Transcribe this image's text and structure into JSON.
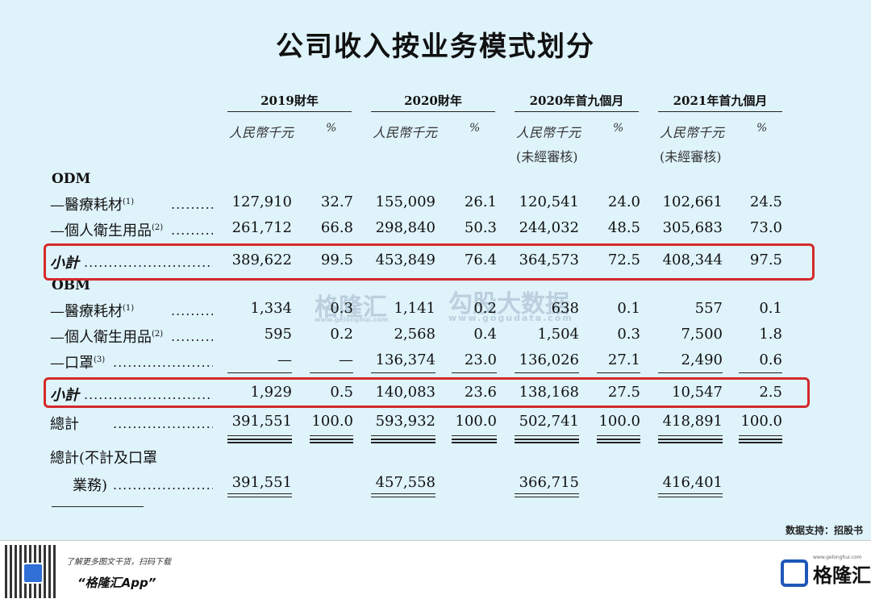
{
  "title": "公司收入按业务模式划分",
  "periods": [
    "2019財年",
    "2020財年",
    "2020年首九個月",
    "2021年首九個月"
  ],
  "unit_rmb": "人民幣千元",
  "unit_pct": "%",
  "unaudited": "(未經審核)",
  "sections": {
    "odm": "ODM",
    "obm": "OBM"
  },
  "rows": [
    {
      "label": "—醫療耗材",
      "sup": "(1)",
      "values": [
        "127,910",
        "32.7",
        "155,009",
        "26.1",
        "120,541",
        "24.0",
        "102,661",
        "24.5"
      ]
    },
    {
      "label": "—個人衛生用品",
      "sup": "(2)",
      "values": [
        "261,712",
        "66.8",
        "298,840",
        "50.3",
        "244,032",
        "48.5",
        "305,683",
        "73.0"
      ]
    },
    {
      "label": "小計",
      "sup": "",
      "values": [
        "389,622",
        "99.5",
        "453,849",
        "76.4",
        "364,573",
        "72.5",
        "408,344",
        "97.5"
      ]
    },
    {
      "label": "—醫療耗材",
      "sup": "(1)",
      "values": [
        "1,334",
        "0.3",
        "1,141",
        "0.2",
        "638",
        "0.1",
        "557",
        "0.1"
      ]
    },
    {
      "label": "—個人衛生用品",
      "sup": "(2)",
      "values": [
        "595",
        "0.2",
        "2,568",
        "0.4",
        "1,504",
        "0.3",
        "7,500",
        "1.8"
      ]
    },
    {
      "label": "—口罩",
      "sup": "(3)",
      "values": [
        "—",
        "—",
        "136,374",
        "23.0",
        "136,026",
        "27.1",
        "2,490",
        "0.6"
      ]
    },
    {
      "label": "小計",
      "sup": "",
      "values": [
        "1,929",
        "0.5",
        "140,083",
        "23.6",
        "138,168",
        "27.5",
        "10,547",
        "2.5"
      ]
    },
    {
      "label": "總計",
      "sup": "",
      "values": [
        "391,551",
        "100.0",
        "593,932",
        "100.0",
        "502,741",
        "100.0",
        "418,891",
        "100.0"
      ]
    }
  ],
  "total_excl": {
    "label_line1": "總計(不計及口罩",
    "label_line2": "業務)",
    "values": [
      "391,551",
      "457,558",
      "366,715",
      "416,401"
    ]
  },
  "watermark": {
    "brand": "格隆汇",
    "brand_url": "www.gelonghui.com",
    "partner": "勾股大数据",
    "partner_url": "www.gogudata.com"
  },
  "source": "数据支持：招股书",
  "footer": {
    "promo_line1": "了解更多图文干货，扫码下载",
    "promo_line2": "“格隆汇App”",
    "logo_text": "格隆汇",
    "logo_url": "www.gelonghui.com"
  },
  "colors": {
    "background": "#dff3fb",
    "highlight": "#d42a2a",
    "brand_blue": "#1e57b8"
  }
}
